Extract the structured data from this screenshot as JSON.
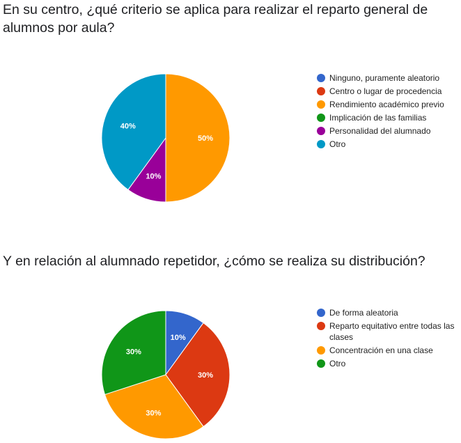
{
  "chart_data": [
    {
      "type": "pie",
      "title": "En su centro, ¿qué criterio se aplica para realizar el reparto general de alumnos por aula?",
      "categories": [
        "Ninguno, puramente aleatorio",
        "Centro o lugar de procedencia",
        "Rendimiento académico previo",
        "Implicación de las familias",
        "Personalidad del alumnado",
        "Otro"
      ],
      "values": [
        0,
        0,
        50,
        0,
        10,
        40
      ],
      "labels": [
        "",
        "",
        "50%",
        "",
        "10%",
        "40%"
      ],
      "colors": [
        "#3366cc",
        "#dc3912",
        "#ff9900",
        "#109618",
        "#990099",
        "#0099c6"
      ],
      "legend": "right"
    },
    {
      "type": "pie",
      "title": "Y en relación al alumnado repetidor, ¿cómo se realiza su distribución?",
      "categories": [
        "De forma aleatoria",
        "Reparto equitativo entre todas las clases",
        "Concentración en una clase",
        "Otro"
      ],
      "values": [
        10,
        30,
        30,
        30
      ],
      "labels": [
        "10%",
        "30%",
        "30%",
        "30%"
      ],
      "colors": [
        "#3366cc",
        "#dc3912",
        "#ff9900",
        "#109618"
      ],
      "legend": "right"
    }
  ]
}
